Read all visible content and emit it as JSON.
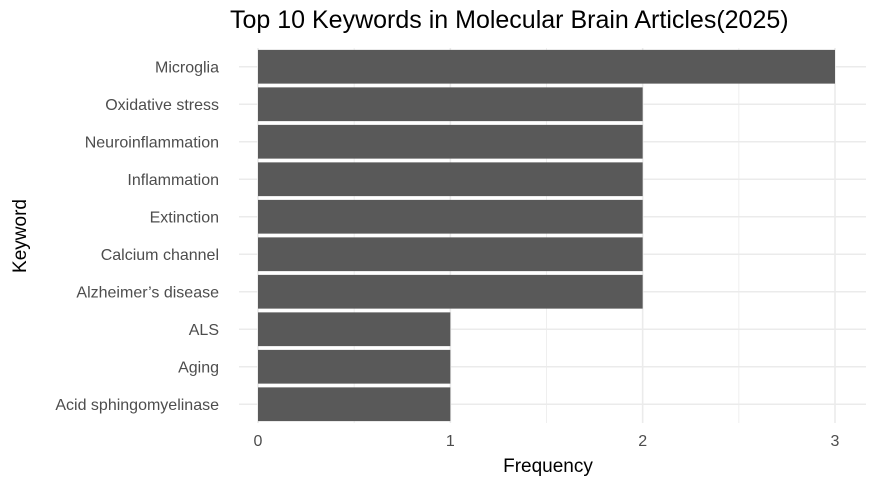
{
  "chart_data": {
    "type": "bar",
    "orientation": "horizontal",
    "title": "Top 10 Keywords in Molecular Brain Articles(2025)",
    "xlabel": "Frequency",
    "ylabel": "Keyword",
    "categories": [
      "Microglia",
      "Oxidative stress",
      "Neuroinflammation",
      "Inflammation",
      "Extinction",
      "Calcium channel",
      "Alzheimer’s disease",
      "ALS",
      "Aging",
      "Acid sphingomyelinase"
    ],
    "values": [
      3,
      2,
      2,
      2,
      2,
      2,
      2,
      1,
      1,
      1
    ],
    "xlim": [
      0,
      3.15
    ],
    "xticks": [
      0,
      1,
      2,
      3
    ],
    "grid": true,
    "bar_color": "#595959",
    "grid_color": "#ebebeb"
  }
}
